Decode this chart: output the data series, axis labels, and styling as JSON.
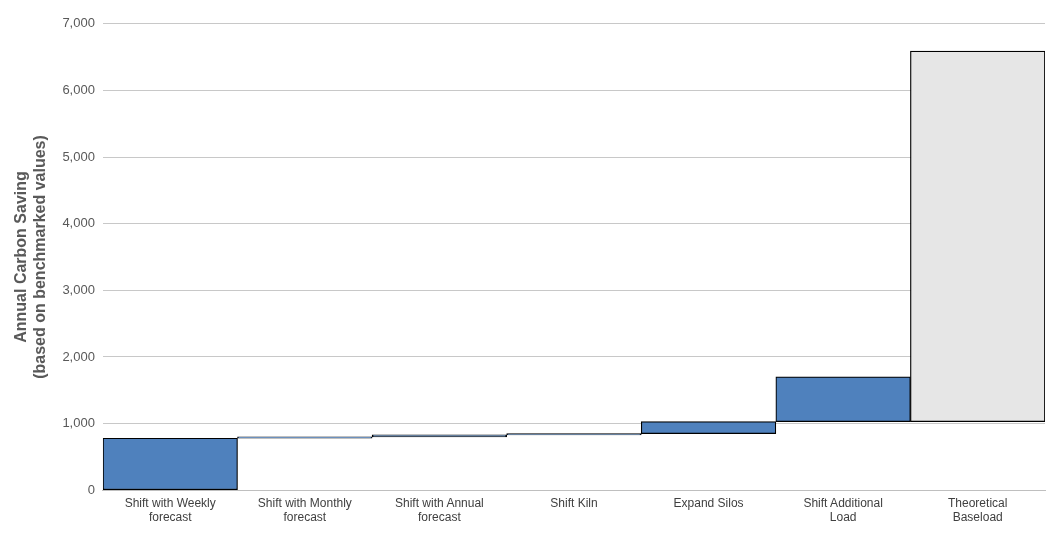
{
  "chart_data": {
    "type": "bar",
    "ylabel": "Annual Carbon Saving\n(based on benchmarked values)",
    "categories": [
      "Shift with Weekly forecast",
      "Shift with Monthly forecast",
      "Shift with Annual forecast",
      "Shift Kiln",
      "Expand Silos",
      "Shift Additional Load",
      "Theoretical Baseload"
    ],
    "values": [
      780,
      20,
      30,
      20,
      180,
      670,
      5560
    ],
    "base": [
      0,
      780,
      800,
      830,
      850,
      1030,
      1030
    ],
    "colors": [
      "#4f81bd",
      "#4f81bd",
      "#4f81bd",
      "#4f81bd",
      "#4f81bd",
      "#4f81bd",
      "#e6e6e6"
    ],
    "ylim": [
      0,
      7000
    ],
    "yticks": [
      0,
      {
        "value": 1000,
        "label": "1,000"
      },
      {
        "value": 2000,
        "label": "2,000"
      },
      {
        "value": 3000,
        "label": "3,000"
      },
      {
        "value": 4000,
        "label": "4,000"
      },
      {
        "value": 5000,
        "label": "5,000"
      },
      {
        "value": 6000,
        "label": "6,000"
      },
      {
        "value": 7000,
        "label": "7,000"
      }
    ],
    "grid": "y",
    "legend": false
  }
}
